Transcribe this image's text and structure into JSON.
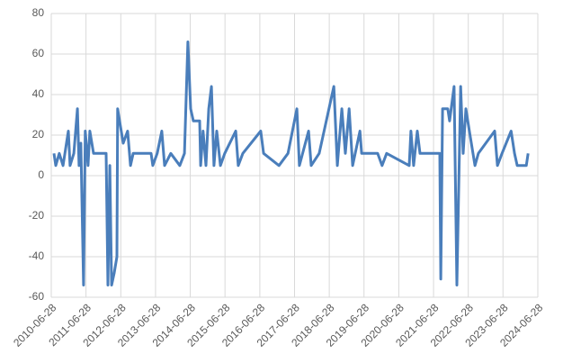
{
  "chart_data": {
    "type": "line",
    "x": [
      "2010-07-26",
      "2010-08-14",
      "2010-09-20",
      "2010-10-30",
      "2010-12-05",
      "2010-12-25",
      "2011-01-12",
      "2011-02-20",
      "2011-03-30",
      "2011-04-16",
      "2011-05-05",
      "2011-06-02",
      "2011-06-20",
      "2011-07-20",
      "2011-08-08",
      "2011-09-15",
      "2012-01-26",
      "2012-02-14",
      "2012-03-04",
      "2012-03-23",
      "2012-04-20",
      "2012-05-18",
      "2012-05-26",
      "2012-07-23",
      "2012-09-08",
      "2012-10-08",
      "2012-11-05",
      "2013-05-12",
      "2013-05-30",
      "2013-07-16",
      "2013-09-02",
      "2013-10-01",
      "2013-12-05",
      "2014-03-10",
      "2014-04-28",
      "2014-06-03",
      "2014-07-02",
      "2014-07-31",
      "2014-10-05",
      "2014-10-15",
      "2014-11-10",
      "2014-12-10",
      "2015-01-08",
      "2015-02-06",
      "2015-03-04",
      "2015-04-02",
      "2015-05-11",
      "2015-06-25",
      "2015-10-19",
      "2015-11-14",
      "2016-01-01",
      "2016-07-08",
      "2016-08-07",
      "2017-01-15",
      "2017-04-20",
      "2017-07-23",
      "2017-08-18",
      "2017-11-22",
      "2017-12-20",
      "2018-03-14",
      "2018-08-15",
      "2018-09-21",
      "2018-11-07",
      "2018-12-14",
      "2019-01-23",
      "2019-03-01",
      "2019-05-16",
      "2019-06-03",
      "2019-11-18",
      "2020-01-04",
      "2020-02-21",
      "2020-10-15",
      "2020-11-02",
      "2020-12-01",
      "2021-01-08",
      "2021-02-06",
      "2021-09-02",
      "2021-09-12",
      "2021-10-01",
      "2021-11-25",
      "2021-12-14",
      "2022-01-30",
      "2022-02-28",
      "2022-04-09",
      "2022-05-05",
      "2022-06-03",
      "2022-07-10",
      "2022-09-06",
      "2022-10-12",
      "2023-04-01",
      "2023-05-01",
      "2023-06-18",
      "2023-09-21",
      "2023-10-27",
      "2023-11-25",
      "2024-02-28",
      "2024-03-18"
    ],
    "series": [
      {
        "color": "#4a7ebb",
        "values": [
          11,
          5,
          11,
          5,
          16,
          22,
          5,
          11,
          33,
          5,
          16,
          -54,
          22,
          5,
          22,
          11,
          11,
          -54,
          5,
          -54,
          -48,
          -40,
          33,
          16,
          22,
          5,
          11,
          11,
          5,
          11,
          22,
          5,
          11,
          5,
          11,
          66,
          33,
          27,
          27,
          5,
          22,
          5,
          33,
          44,
          5,
          22,
          5,
          11,
          22,
          5,
          11,
          22,
          11,
          5,
          11,
          33,
          5,
          22,
          5,
          11,
          44,
          5,
          33,
          11,
          33,
          5,
          22,
          11,
          11,
          5,
          11,
          5,
          22,
          5,
          22,
          11,
          11,
          -51,
          33,
          33,
          27,
          44,
          -54,
          44,
          11,
          33,
          22,
          5,
          11,
          22,
          5,
          11,
          22,
          11,
          5,
          5,
          11
        ]
      }
    ],
    "xlim": [
      "2010-06-28",
      "2024-06-28"
    ],
    "xticks": [
      "2010-06-28",
      "2011-06-28",
      "2012-06-28",
      "2013-06-28",
      "2014-06-28",
      "2015-06-28",
      "2016-06-28",
      "2017-06-28",
      "2018-06-28",
      "2019-06-28",
      "2020-06-28",
      "2021-06-28",
      "2022-06-28",
      "2023-06-28",
      "2024-06-28"
    ],
    "ylim": [
      -60,
      80
    ],
    "yticks": [
      -60,
      -40,
      -20,
      0,
      20,
      40,
      60,
      80
    ],
    "grid": true
  }
}
